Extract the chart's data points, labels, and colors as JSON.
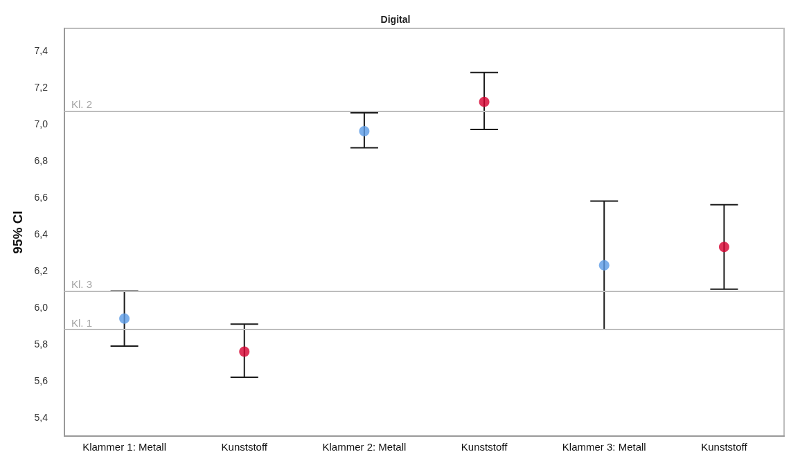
{
  "chart_data": {
    "type": "scatter",
    "title": "Digital",
    "ylabel": "95% CI",
    "categories": [
      "Klammer 1: Metall",
      "Kunststoff",
      "Klammer 2: Metall",
      "Kunststoff",
      "Klammer 3: Metall",
      "Kunststoff"
    ],
    "values": [
      5.94,
      5.76,
      6.96,
      7.12,
      6.23,
      6.33
    ],
    "errors": [
      [
        5.79,
        6.09
      ],
      [
        5.62,
        5.91
      ],
      [
        6.87,
        7.06
      ],
      [
        6.97,
        7.28
      ],
      [
        5.88,
        6.58
      ],
      [
        6.1,
        6.56
      ]
    ],
    "colors": [
      "#5b9be6",
      "#d6002f",
      "#5b9be6",
      "#d6002f",
      "#5b9be6",
      "#d6002f"
    ],
    "marker": "circle",
    "ylim": [
      5.3,
      7.52
    ],
    "yticks": [
      {
        "value": 5.4,
        "label": "5,4"
      },
      {
        "value": 5.6,
        "label": "5,6"
      },
      {
        "value": 5.8,
        "label": "5,8"
      },
      {
        "value": 6.0,
        "label": "6,0"
      },
      {
        "value": 6.2,
        "label": "6,2"
      },
      {
        "value": 6.4,
        "label": "6,4"
      },
      {
        "value": 6.6,
        "label": "6,6"
      },
      {
        "value": 6.8,
        "label": "6,8"
      },
      {
        "value": 7.0,
        "label": "7,0"
      },
      {
        "value": 7.2,
        "label": "7,2"
      },
      {
        "value": 7.4,
        "label": "7,4"
      }
    ],
    "grid": false,
    "ref_lines": [
      {
        "axis": "y",
        "value": 7.07,
        "label": "Kl. 2",
        "color": "#bdbdbd"
      },
      {
        "axis": "y",
        "value": 6.09,
        "label": "Kl. 3",
        "color": "#bdbdbd"
      },
      {
        "axis": "y",
        "value": 5.88,
        "label": "Kl. 1",
        "color": "#bdbdbd"
      }
    ]
  }
}
